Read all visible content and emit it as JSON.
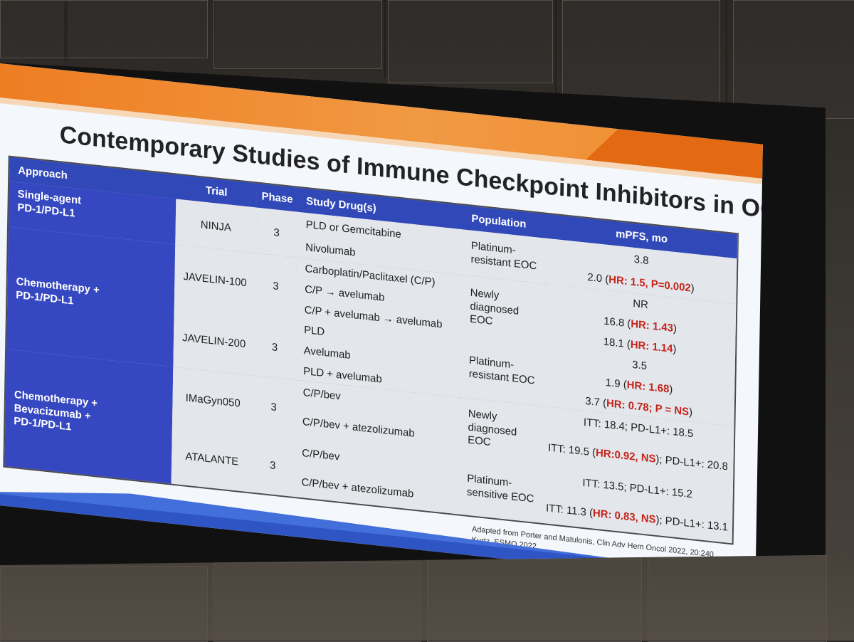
{
  "slide": {
    "title": "Contemporary Studies of Immune Checkpoint Inhibitors in OC",
    "source_lines": [
      "Adapted from Porter and Matulonis, Clin Adv Hem Oncol 2022, 20:240",
      "Kurtz, ESMO 2022"
    ]
  },
  "table": {
    "headers": {
      "approach": "Approach",
      "trial": "Trial",
      "phase": "Phase",
      "study_drug": "Study Drug(s)",
      "population": "Population",
      "mpfs": "mPFS, mo"
    },
    "groups": [
      {
        "approach": "Single-agent\nPD-1/PD-L1",
        "trial": "NINJA",
        "phase": "3",
        "population": "Platinum-\nresistant EOC",
        "drugs": [
          "PLD or Gemcitabine",
          "Nivolumab"
        ],
        "mpfs": [
          "3.8",
          "2.0 (HR: 1.5, P=0.002)"
        ]
      },
      {
        "approach": "Chemotherapy +\nPD-1/PD-L1",
        "subgroups": [
          {
            "trial": "JAVELIN-100",
            "phase": "3",
            "population": "Newly\ndiagnosed\nEOC",
            "drugs": [
              "Carboplatin/Paclitaxel (C/P)",
              "C/P → avelumab",
              "C/P + avelumab → avelumab"
            ],
            "mpfs": [
              "NR",
              "16.8 (HR: 1.43)",
              "18.1 (HR: 1.14)"
            ]
          },
          {
            "trial": "JAVELIN-200",
            "phase": "3",
            "population": "Platinum-\nresistant EOC",
            "drugs": [
              "PLD",
              "Avelumab",
              "PLD + avelumab"
            ],
            "mpfs": [
              "3.5",
              "1.9 (HR: 1.68)",
              "3.7 (HR: 0.78; P = NS)"
            ]
          }
        ]
      },
      {
        "approach": "Chemotherapy +\nBevacizumab +\nPD-1/PD-L1",
        "subgroups": [
          {
            "trial": "IMaGyn050",
            "phase": "3",
            "population": "Newly\ndiagnosed\nEOC",
            "drugs": [
              "C/P/bev",
              "C/P/bev + atezolizumab"
            ],
            "mpfs": [
              "ITT: 18.4; PD-L1+: 18.5",
              "ITT: 19.5 (HR:0.92, NS); PD-L1+: 20.8"
            ]
          },
          {
            "trial": "ATALANTE",
            "phase": "3",
            "population": "Platinum-\nsensitive EOC",
            "drugs": [
              "C/P/bev",
              "C/P/bev + atezolizumab"
            ],
            "mpfs": [
              "ITT: 13.5; PD-L1+: 15.2",
              "ITT: 11.3 (HR: 0.83, NS); PD-L1+: 13.1"
            ]
          }
        ]
      }
    ]
  },
  "colors": {
    "header_blue": "#3148b8",
    "approach_blue": "#3648c1",
    "accent_orange": "#ee7d22",
    "result_red": "#c42318"
  }
}
